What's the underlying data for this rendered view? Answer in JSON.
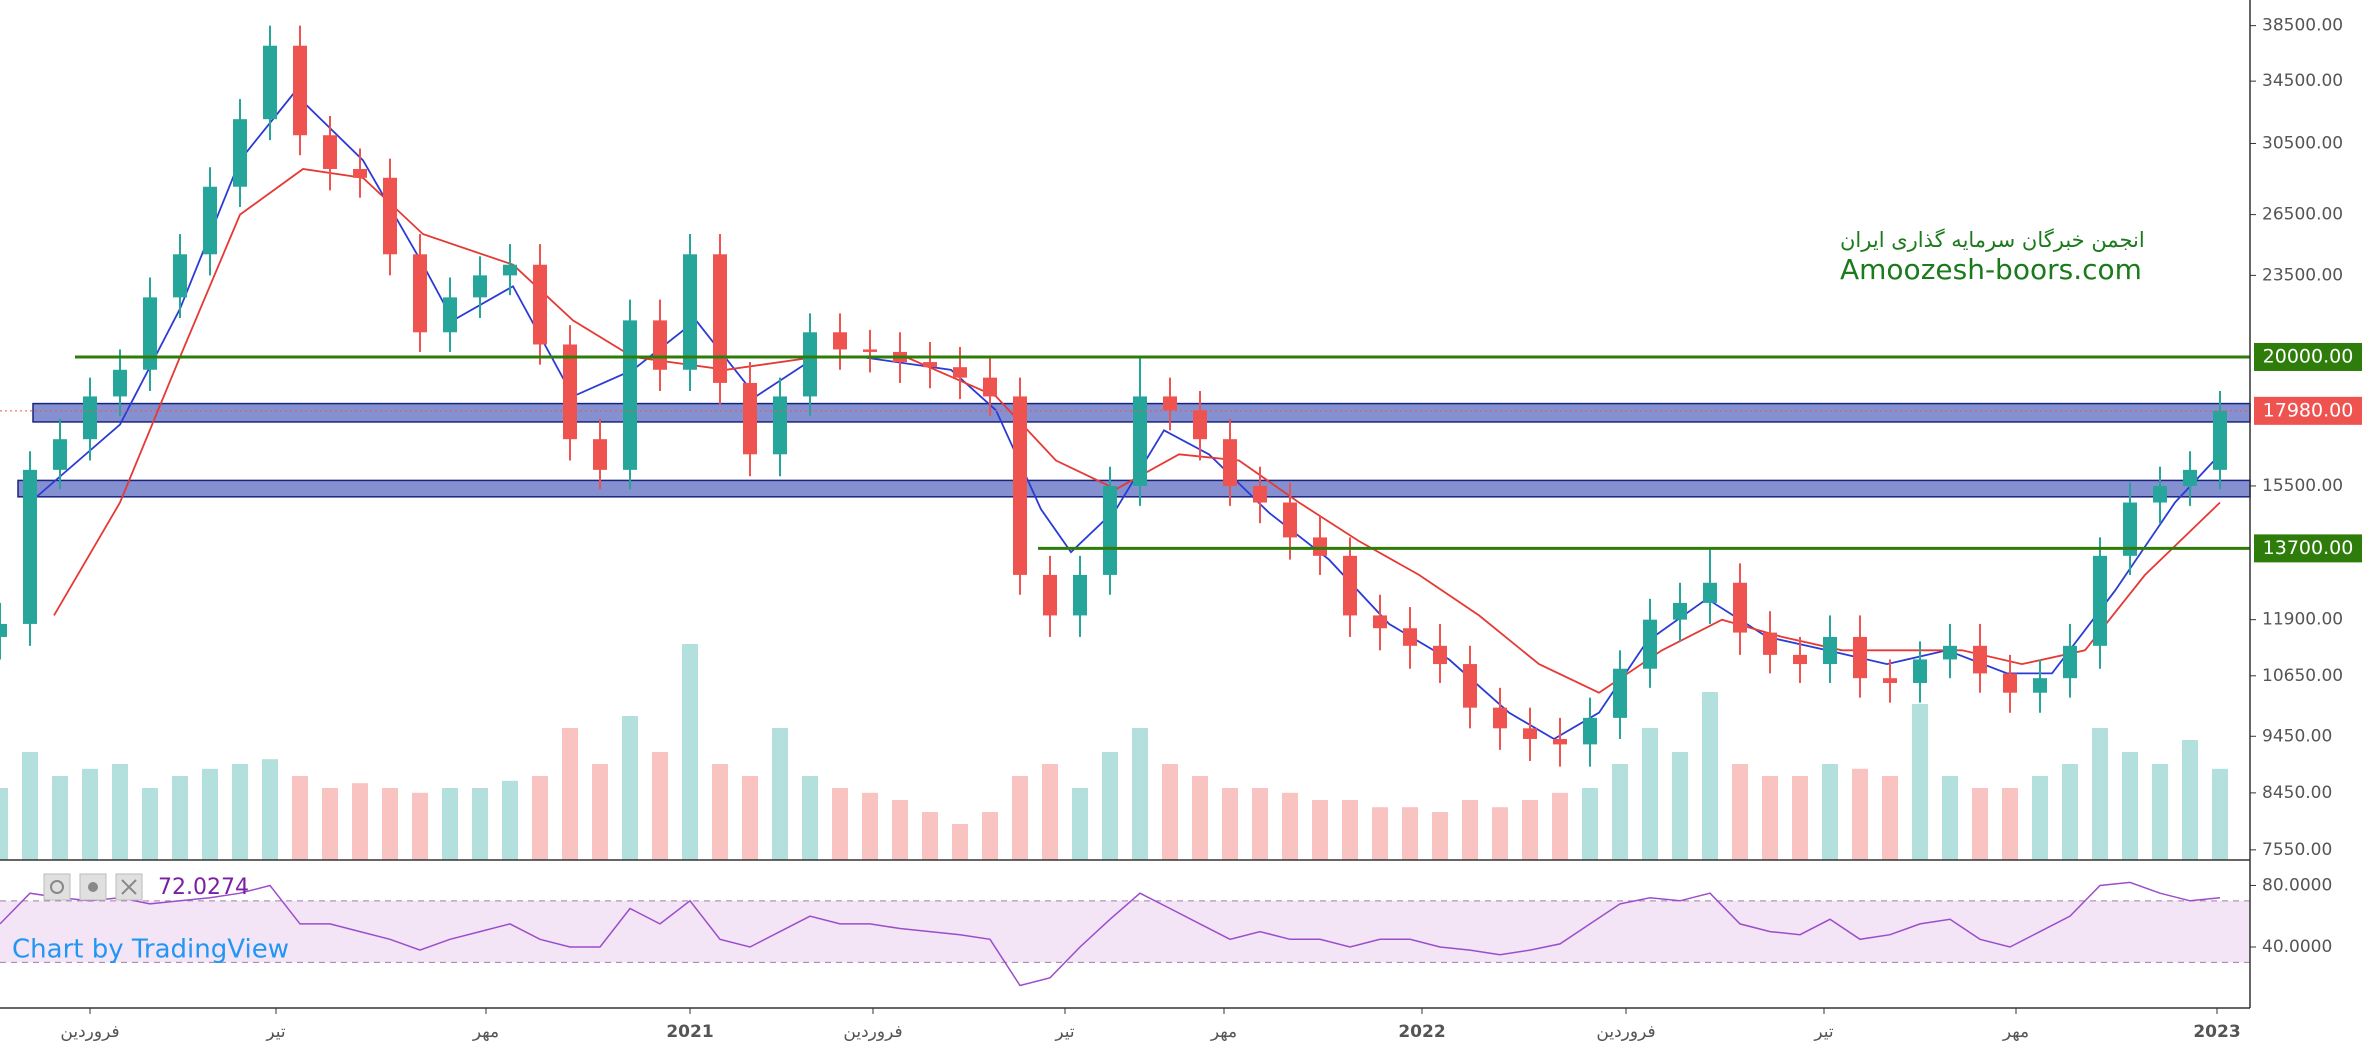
{
  "chart_data": {
    "type": "candlestick",
    "log_scale": true,
    "xlim": [
      0,
      75
    ],
    "ylim": [
      7400,
      40500
    ],
    "yticks": [
      {
        "value": 38500,
        "label": "38500.00"
      },
      {
        "value": 34500,
        "label": "34500.00"
      },
      {
        "value": 30500,
        "label": "30500.00"
      },
      {
        "value": 26500,
        "label": "26500.00"
      },
      {
        "value": 23500,
        "label": "23500.00"
      },
      {
        "value": 15500,
        "label": "15500.00"
      },
      {
        "value": 11900,
        "label": "11900.00"
      },
      {
        "value": 10650,
        "label": "10650.00"
      },
      {
        "value": 9450,
        "label": "9450.00"
      },
      {
        "value": 8450,
        "label": "8450.00"
      },
      {
        "value": 7550,
        "label": "7550.00"
      }
    ],
    "xticks": [
      {
        "value": 3,
        "label": "فروردین"
      },
      {
        "value": 9.2,
        "label": "تیر"
      },
      {
        "value": 16.2,
        "label": "مهر"
      },
      {
        "value": 23,
        "label": "2021"
      },
      {
        "value": 29.1,
        "label": "فروردین"
      },
      {
        "value": 35.5,
        "label": "تیر"
      },
      {
        "value": 40.8,
        "label": "مهر"
      },
      {
        "value": 47.4,
        "label": "2022"
      },
      {
        "value": 54.2,
        "label": "فروردین"
      },
      {
        "value": 60.8,
        "label": "تیر"
      },
      {
        "value": 67.2,
        "label": "مهر"
      },
      {
        "value": 73.9,
        "label": "2023"
      }
    ],
    "up_color": "#26a69a",
    "down_color": "#ef5350",
    "x": [
      0,
      1,
      2,
      3,
      4,
      5,
      6,
      7,
      8,
      9,
      10,
      11,
      12,
      13,
      14,
      15,
      16,
      17,
      18,
      19,
      20,
      21,
      22,
      23,
      24,
      25,
      26,
      27,
      28,
      29,
      30,
      31,
      32,
      33,
      34,
      35,
      36,
      37,
      38,
      39,
      40,
      41,
      42,
      43,
      44,
      45,
      46,
      47,
      48,
      49,
      50,
      51,
      52,
      53,
      54,
      55,
      56,
      57,
      58,
      59,
      60,
      61,
      62,
      63,
      64,
      65,
      66,
      67,
      68,
      69,
      70,
      71,
      72,
      73,
      74
    ],
    "open": [
      11500,
      11800,
      16000,
      17000,
      18500,
      19500,
      22500,
      24500,
      28000,
      32000,
      37000,
      31000,
      29000,
      28500,
      24500,
      21000,
      22500,
      23500,
      24000,
      20500,
      17000,
      16000,
      21500,
      19500,
      24500,
      19000,
      16500,
      18500,
      21000,
      20300,
      20200,
      19800,
      19600,
      19200,
      18500,
      13000,
      12000,
      13000,
      15500,
      18500,
      18000,
      17000,
      15500,
      15000,
      14000,
      13500,
      12000,
      11700,
      11300,
      10900,
      10000,
      9600,
      9400,
      9300,
      9800,
      10800,
      11900,
      12300,
      12800,
      11600,
      11100,
      10900,
      11500,
      10600,
      10500,
      11000,
      11300,
      10700,
      10300,
      10600,
      11300,
      13500,
      15000,
      15500,
      16000
    ],
    "high": [
      12300,
      16600,
      17700,
      19200,
      20300,
      23400,
      25500,
      29100,
      33300,
      38500,
      38500,
      32200,
      30200,
      29600,
      25500,
      23400,
      24400,
      25000,
      25000,
      21300,
      17700,
      22400,
      22400,
      25500,
      25500,
      19800,
      19200,
      21800,
      21800,
      21100,
      21000,
      20600,
      20400,
      20000,
      19200,
      13500,
      13500,
      16100,
      20000,
      19200,
      18700,
      17700,
      16100,
      15600,
      14600,
      14000,
      12500,
      12200,
      11800,
      11300,
      10400,
      10000,
      9800,
      10200,
      11200,
      12400,
      12800,
      13700,
      13300,
      12100,
      11500,
      12000,
      12000,
      11000,
      11400,
      11800,
      11800,
      11100,
      11000,
      11800,
      14000,
      15600,
      16100,
      16600,
      18700
    ],
    "low": [
      11000,
      11300,
      15400,
      16300,
      17800,
      18700,
      21600,
      23500,
      26900,
      30700,
      29800,
      27800,
      27400,
      23500,
      20200,
      20200,
      21600,
      22600,
      19700,
      16300,
      15400,
      15400,
      18700,
      18700,
      18200,
      15800,
      15800,
      17800,
      19500,
      19400,
      19000,
      18800,
      18400,
      17800,
      12500,
      11500,
      11500,
      12500,
      14900,
      17300,
      16300,
      14900,
      14400,
      13400,
      13000,
      11500,
      11200,
      10800,
      10500,
      9600,
      9200,
      9000,
      8900,
      8900,
      9400,
      10400,
      11400,
      11800,
      11100,
      10700,
      10500,
      10500,
      10200,
      10100,
      10100,
      10600,
      10300,
      9900,
      9900,
      10200,
      10800,
      13000,
      14400,
      14900,
      15400
    ],
    "close": [
      11800,
      16000,
      17000,
      18500,
      19500,
      22500,
      24500,
      28000,
      32000,
      37000,
      31000,
      29000,
      28500,
      24500,
      21000,
      22500,
      23500,
      24000,
      20500,
      17000,
      16000,
      21500,
      19500,
      24500,
      19000,
      16500,
      18500,
      21000,
      20300,
      20200,
      19800,
      19600,
      19200,
      18500,
      13000,
      12000,
      13000,
      15500,
      18500,
      18000,
      17000,
      15500,
      15000,
      14000,
      13500,
      12000,
      11700,
      11300,
      10900,
      10000,
      9600,
      9400,
      9300,
      9800,
      10800,
      11900,
      12300,
      12800,
      11600,
      11100,
      10900,
      11500,
      10600,
      10500,
      11000,
      11300,
      10700,
      10300,
      10600,
      11300,
      13500,
      15000,
      15500,
      16000,
      17980
    ],
    "volume_lim": [
      0,
      100
    ],
    "volume": [
      30,
      45,
      35,
      38,
      40,
      30,
      35,
      38,
      40,
      42,
      35,
      30,
      32,
      30,
      28,
      30,
      30,
      33,
      35,
      55,
      40,
      60,
      45,
      90,
      40,
      35,
      55,
      35,
      30,
      28,
      25,
      20,
      15,
      20,
      35,
      40,
      30,
      45,
      55,
      40,
      35,
      30,
      30,
      28,
      25,
      25,
      22,
      22,
      20,
      25,
      22,
      25,
      28,
      30,
      40,
      55,
      45,
      70,
      40,
      35,
      35,
      40,
      38,
      35,
      65,
      35,
      30,
      30,
      35,
      40,
      55,
      45,
      40,
      50,
      38
    ],
    "moving_averages": [
      {
        "color": "#2a3bd6",
        "x": [
          1,
          4,
          6,
          8,
          9.8,
          12.1,
          14.1,
          15.1,
          17.1,
          19.1,
          21.1,
          23.2,
          25.2,
          27.2,
          28.7,
          31.7,
          33.2,
          34.7,
          35.7,
          37.2,
          38.8,
          40.3,
          42.3,
          44.3,
          46.3,
          48.3,
          50.3,
          51.8,
          53.3,
          54.9,
          56.9,
          58.9,
          60.9,
          62.9,
          64.9,
          66.9,
          68.4,
          70.5,
          72.5,
          74
        ],
        "values": [
          15000,
          17500,
          22000,
          29500,
          33700,
          29500,
          24000,
          21500,
          23000,
          18500,
          19500,
          21500,
          18500,
          20000,
          20000,
          19500,
          18000,
          14800,
          13600,
          14800,
          17300,
          16500,
          14700,
          13400,
          11800,
          11000,
          9900,
          9400,
          9900,
          11400,
          12400,
          11500,
          11200,
          10900,
          11200,
          10700,
          10700,
          12600,
          15000,
          16500
        ]
      },
      {
        "color": "#e53935",
        "x": [
          1.8,
          4,
          6,
          8,
          10.1,
          12.1,
          14.1,
          17.1,
          19.1,
          21.1,
          24.2,
          27.2,
          30.2,
          33.2,
          35.2,
          37.2,
          39.3,
          41.3,
          43.3,
          45.3,
          47.3,
          49.3,
          51.3,
          53.3,
          55.4,
          57.4,
          59.4,
          61.4,
          63.4,
          65.4,
          67.4,
          69.5,
          71.5,
          74
        ],
        "values": [
          12000,
          15000,
          20000,
          26500,
          29000,
          28500,
          25500,
          24000,
          21500,
          20000,
          19500,
          20000,
          20000,
          18500,
          16300,
          15400,
          16500,
          16300,
          15000,
          13900,
          13000,
          12000,
          10900,
          10300,
          11200,
          11900,
          11500,
          11200,
          11200,
          11200,
          10900,
          11200,
          13000,
          15000
        ]
      }
    ],
    "zones": [
      {
        "low": 17590,
        "high": 18240,
        "x_start": 1.1,
        "color": "#5c6bc0"
      },
      {
        "low": 15170,
        "high": 15670,
        "x_start": 0.6,
        "color": "#5c6bc0"
      }
    ],
    "levels": [
      {
        "value": 20000,
        "label": "20000.00",
        "color": "#2e7d0a",
        "x_start": 2.5
      },
      {
        "value": 13700,
        "label": "13700.00",
        "color": "#2e7d0a",
        "x_start": 34.6
      }
    ],
    "last_price": {
      "value": 17980,
      "label": "17980.00",
      "color": "#ef5350"
    },
    "rsi": {
      "color": "#9c4dcc",
      "ylim": [
        1,
        92
      ],
      "yticks": [
        {
          "value": 80,
          "label": "80.0000"
        },
        {
          "value": 40,
          "label": "40.0000"
        }
      ],
      "bands": [
        30,
        70
      ],
      "values": [
        55,
        75,
        72,
        70,
        72,
        68,
        70,
        72,
        75,
        80,
        55,
        55,
        50,
        45,
        38,
        45,
        50,
        55,
        45,
        40,
        40,
        65,
        55,
        70,
        45,
        40,
        50,
        60,
        55,
        55,
        52,
        50,
        48,
        45,
        15,
        20,
        40,
        58,
        75,
        65,
        55,
        45,
        50,
        45,
        45,
        40,
        45,
        45,
        40,
        38,
        35,
        38,
        42,
        55,
        68,
        72,
        70,
        75,
        55,
        50,
        48,
        58,
        45,
        48,
        55,
        58,
        45,
        40,
        50,
        60,
        80,
        82,
        75,
        70,
        72.0274
      ]
    },
    "watermark": [
      "انجمن خبرگان سرمایه گذاری ایران",
      "Amoozesh-boors.com"
    ],
    "attribution": "Chart by TradingView"
  }
}
